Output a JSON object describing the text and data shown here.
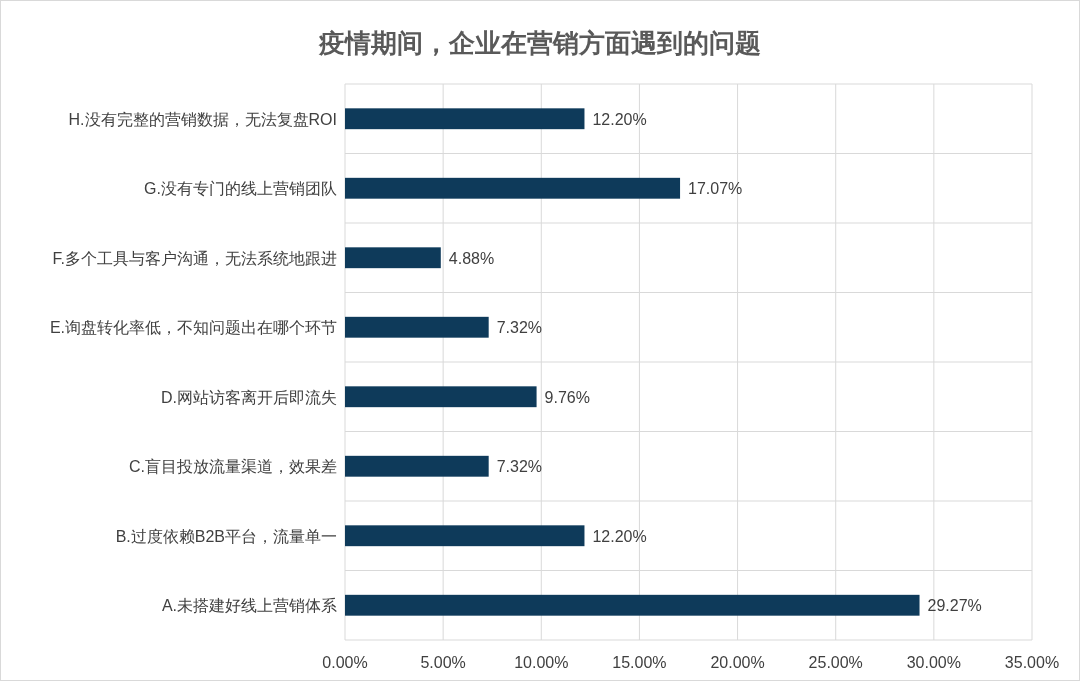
{
  "chart_data": {
    "type": "bar",
    "orientation": "horizontal",
    "title": "疫情期间，企业在营销方面遇到的问题",
    "categories": [
      "H.没有完整的营销数据，无法复盘ROI",
      "G.没有专门的线上营销团队",
      "F.多个工具与客户沟通，无法系统地跟进",
      "E.询盘转化率低，不知问题出在哪个环节",
      "D.网站访客离开后即流失",
      "C.盲目投放流量渠道，效果差",
      "B.过度依赖B2B平台，流量单一",
      "A.未搭建好线上营销体系"
    ],
    "values": [
      12.2,
      17.07,
      4.88,
      7.32,
      9.76,
      7.32,
      12.2,
      29.27
    ],
    "value_labels": [
      "12.20%",
      "17.07%",
      "4.88%",
      "7.32%",
      "9.76%",
      "7.32%",
      "12.20%",
      "29.27%"
    ],
    "color": "#0e3a5a",
    "xlim": [
      0,
      35
    ],
    "xticks": [
      {
        "value": 0,
        "label": "0.00%"
      },
      {
        "value": 5,
        "label": "5.00%"
      },
      {
        "value": 10,
        "label": "10.00%"
      },
      {
        "value": 15,
        "label": "15.00%"
      },
      {
        "value": 20,
        "label": "20.00%"
      },
      {
        "value": 25,
        "label": "25.00%"
      },
      {
        "value": 30,
        "label": "30.00%"
      },
      {
        "value": 35,
        "label": "35.00%"
      }
    ],
    "grid": true
  }
}
